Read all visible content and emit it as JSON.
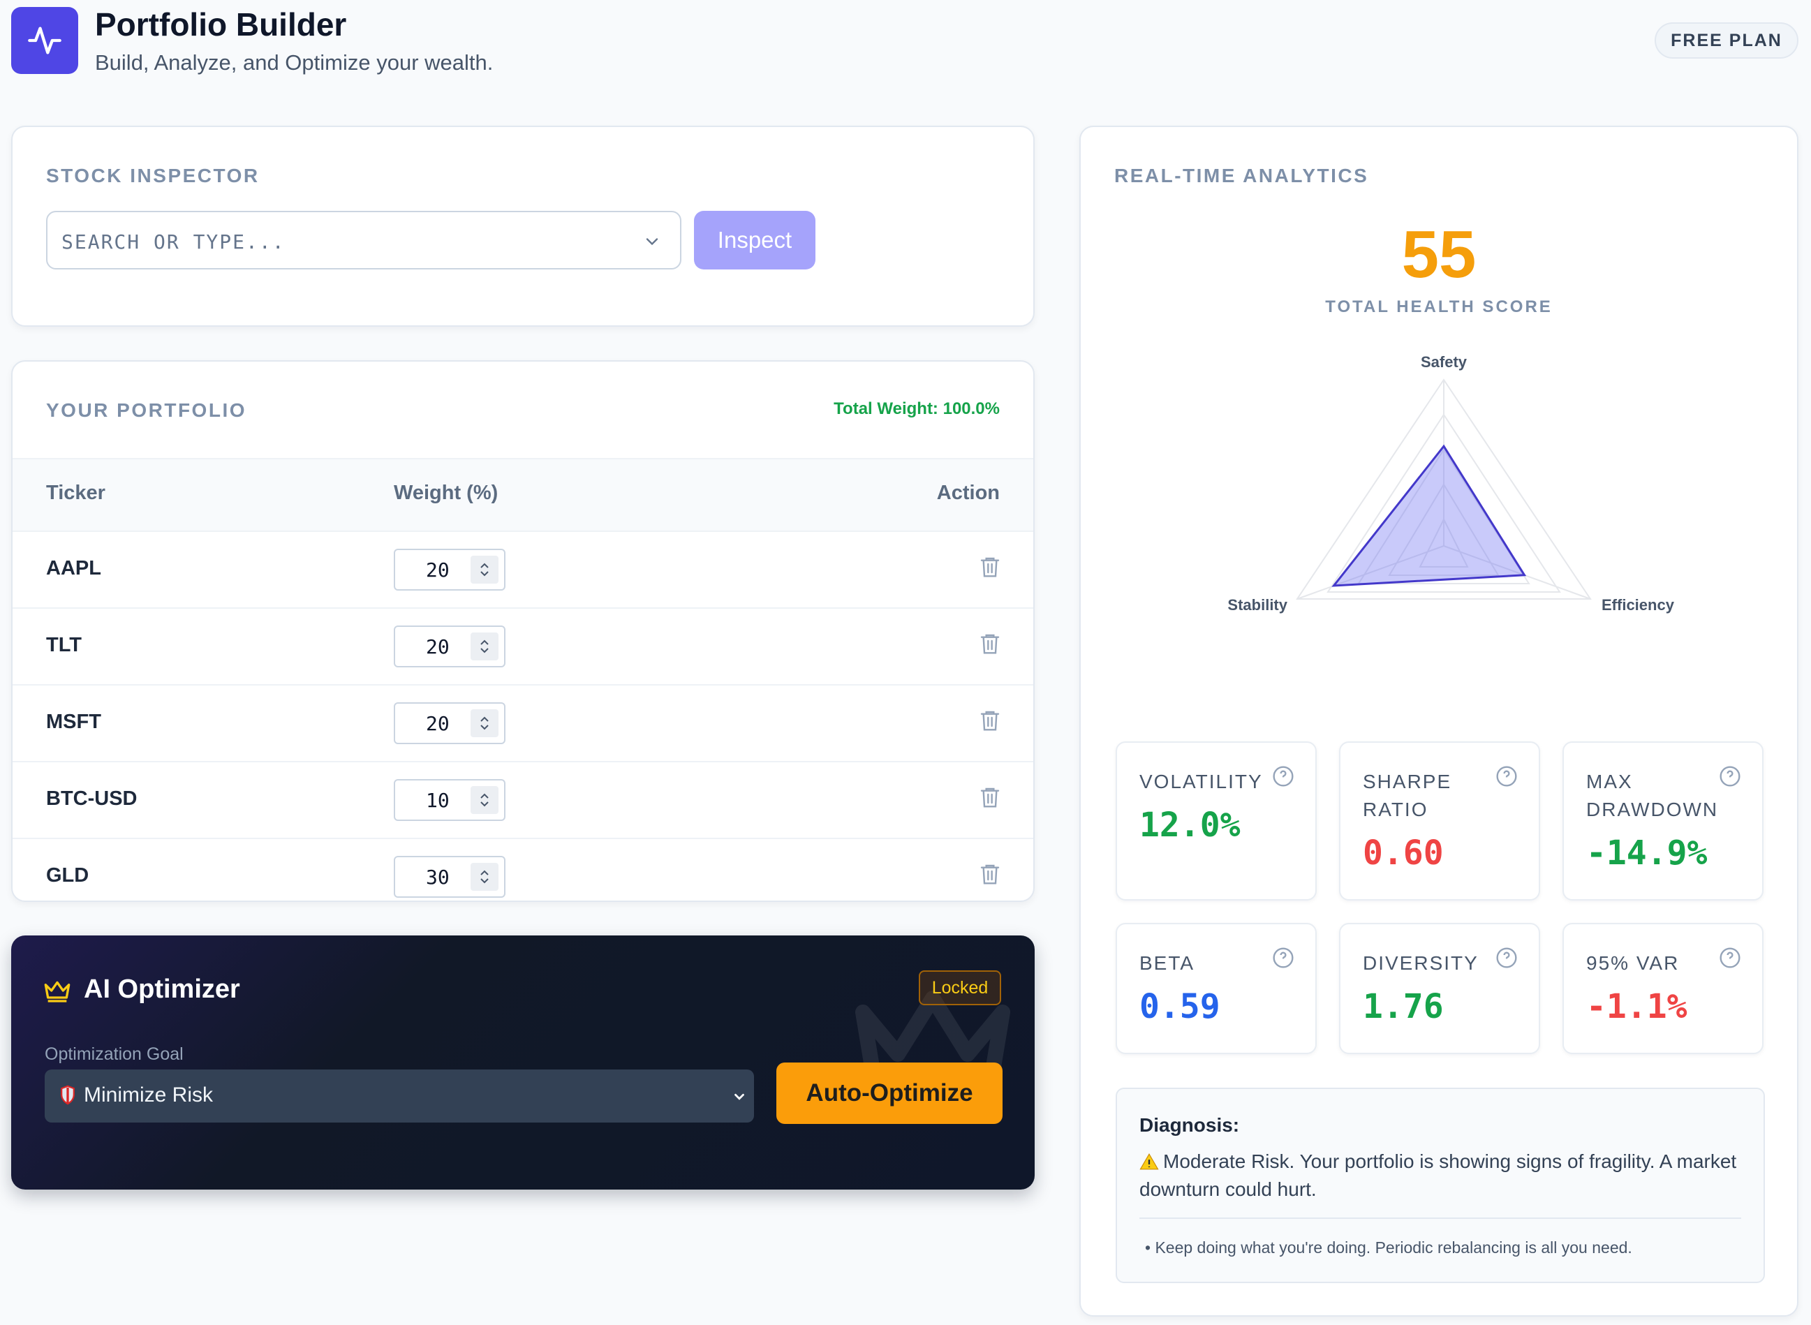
{
  "header": {
    "title": "Portfolio Builder",
    "subtitle": "Build, Analyze, and Optimize your wealth.",
    "plan_badge": "FREE PLAN",
    "logo_icon": "activity-pulse-icon"
  },
  "inspector": {
    "title": "STOCK INSPECTOR",
    "search_placeholder": "SEARCH OR TYPE...",
    "search_value": "",
    "inspect_label": "Inspect"
  },
  "portfolio": {
    "title": "YOUR PORTFOLIO",
    "total_weight": "Total Weight: 100.0%",
    "columns": {
      "ticker": "Ticker",
      "weight": "Weight (%)",
      "action": "Action"
    },
    "rows": [
      {
        "ticker": "AAPL",
        "weight": "20"
      },
      {
        "ticker": "TLT",
        "weight": "20"
      },
      {
        "ticker": "MSFT",
        "weight": "20"
      },
      {
        "ticker": "BTC-USD",
        "weight": "10"
      },
      {
        "ticker": "GLD",
        "weight": "30"
      }
    ]
  },
  "optimizer": {
    "title": "AI Optimizer",
    "locked_badge": "Locked",
    "goal_label": "Optimization Goal",
    "goal_value": "Minimize Risk",
    "action_label": "Auto-Optimize"
  },
  "analytics": {
    "title": "REAL-TIME ANALYTICS",
    "score": "55",
    "score_label": "TOTAL HEALTH SCORE",
    "radar": {
      "axes": [
        "Safety",
        "Efficiency",
        "Stability"
      ],
      "values": [
        0.6,
        0.55,
        0.75
      ],
      "fill_color": "#6366f1"
    },
    "metrics": [
      {
        "label": "VOLATILITY",
        "value": "12.0%",
        "color": "#16a34a"
      },
      {
        "label": "SHARPE RATIO",
        "value": "0.60",
        "color": "#ef4444"
      },
      {
        "label": "MAX DRAWDOWN",
        "value": "-14.9%",
        "color": "#16a34a"
      },
      {
        "label": "BETA",
        "value": "0.59",
        "color": "#2563eb"
      },
      {
        "label": "DIVERSITY",
        "value": "1.76",
        "color": "#16a34a"
      },
      {
        "label": "95% VAR",
        "value": "-1.1%",
        "color": "#ef4444"
      }
    ],
    "diagnosis": {
      "title": "Diagnosis:",
      "text": "Moderate Risk. Your portfolio is showing signs of fragility. A market downturn could hurt.",
      "tip": "Keep doing what you're doing. Periodic rebalancing is all you need."
    }
  },
  "colors": {
    "accent": "#4f46e5",
    "score": "#f59e0b",
    "optimize_button": "#fb9d0a",
    "positive": "#16a34a",
    "negative": "#ef4444"
  }
}
